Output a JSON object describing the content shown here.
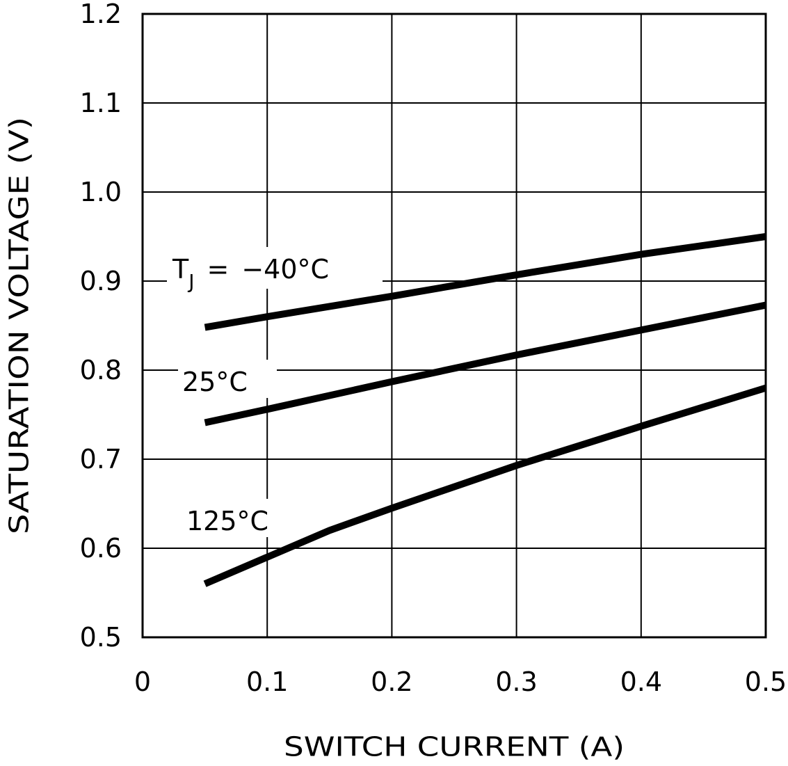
{
  "chart_data": {
    "type": "line",
    "xlabel": "SWITCH CURRENT (A)",
    "ylabel": "SATURATION VOLTAGE (V)",
    "label_prefix": {
      "symbol": "T",
      "subscript": "J",
      "relation": "="
    },
    "series": [
      {
        "name": "−40°C",
        "color": "#000000",
        "x": [
          0.05,
          0.1,
          0.2,
          0.3,
          0.4,
          0.5
        ],
        "values": [
          0.848,
          0.86,
          0.883,
          0.907,
          0.93,
          0.95
        ]
      },
      {
        "name": "25°C",
        "color": "#000000",
        "x": [
          0.05,
          0.1,
          0.2,
          0.3,
          0.4,
          0.5
        ],
        "values": [
          0.741,
          0.756,
          0.787,
          0.817,
          0.845,
          0.873
        ]
      },
      {
        "name": "125°C",
        "color": "#000000",
        "x": [
          0.05,
          0.1,
          0.15,
          0.2,
          0.3,
          0.4,
          0.5
        ],
        "values": [
          0.56,
          0.59,
          0.62,
          0.645,
          0.693,
          0.737,
          0.78
        ]
      }
    ],
    "xlim": [
      0,
      0.5
    ],
    "xticks": [
      0,
      0.1,
      0.2,
      0.3,
      0.4,
      0.5
    ],
    "ylim": [
      0.5,
      1.2
    ],
    "yticks": [
      0.5,
      0.6,
      0.7,
      0.8,
      0.9,
      {
        "value": 1,
        "label": "1.0"
      },
      1.1,
      1.2
    ],
    "grid": true
  }
}
